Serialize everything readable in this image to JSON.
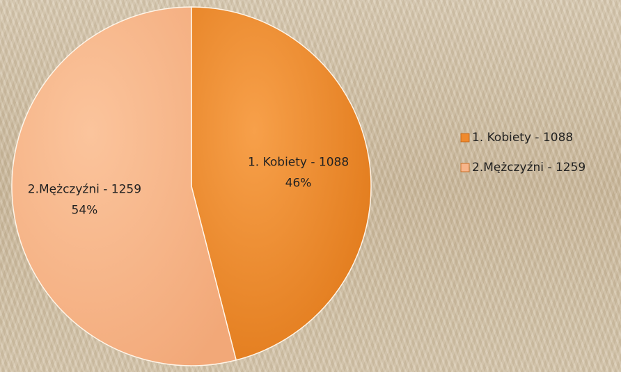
{
  "chart_data": {
    "type": "pie",
    "categories": [
      "1. Kobiety - 1088",
      "2.Mężczyźni - 1259"
    ],
    "values": [
      46,
      54
    ],
    "value_labels": [
      "46%",
      "54%"
    ],
    "colors": [
      "#ef8a2e",
      "#f7b58a"
    ],
    "legend": "right"
  }
}
